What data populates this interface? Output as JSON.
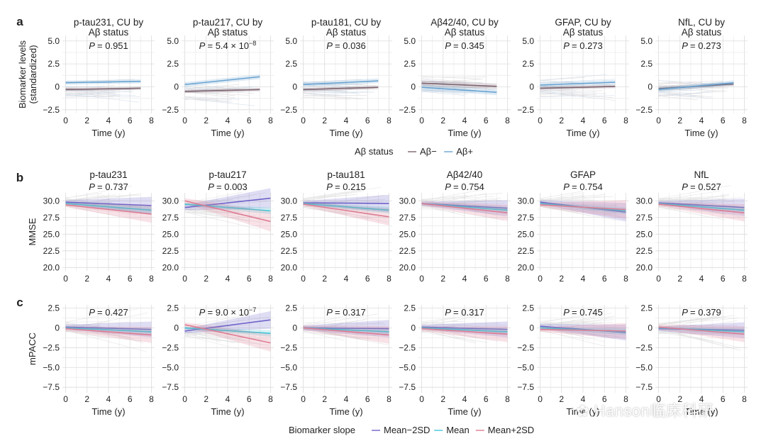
{
  "row_letters": [
    "a",
    "b",
    "c"
  ],
  "legend_a": {
    "title": "Aβ status",
    "items": [
      {
        "label": "Aβ−",
        "color": "#7d6470"
      },
      {
        "label": "Aβ+",
        "color": "#6aa3d1"
      }
    ]
  },
  "legend_bc": {
    "title": "Biomarker slope",
    "items": [
      {
        "label": "Mean−2SD",
        "color": "#6e63c9"
      },
      {
        "label": "Mean",
        "color": "#3fc6d8"
      },
      {
        "label": "Mean+2SD",
        "color": "#de7c93"
      }
    ]
  },
  "watermark": "Hanson临床科研",
  "chart_data": [
    {
      "row": "a",
      "type": "line",
      "ylabel": "Biomarker levels\n(standardized)",
      "xlabel": "Time (y)",
      "xlim": [
        -0.3,
        8.3
      ],
      "ylim": [
        -2.9,
        5.6
      ],
      "xticks": [
        0,
        2,
        4,
        6,
        8
      ],
      "yticks": [
        -2.5,
        0,
        2.5,
        5.0
      ],
      "ytick_labels": [
        "−2.5",
        "0",
        "2.5",
        "5.0"
      ],
      "grid": true,
      "panels": [
        {
          "title": "p-tau231, CU by\nAβ status",
          "p": "P = 0.951",
          "series": [
            {
              "name": "Aβ−",
              "x": [
                0,
                7
              ],
              "y": [
                -0.3,
                -0.15
              ],
              "band": 0.18,
              "color": "#7d6470"
            },
            {
              "name": "Aβ+",
              "x": [
                0,
                7
              ],
              "y": [
                0.45,
                0.6
              ],
              "band": 0.22,
              "color": "#6aa3d1"
            }
          ]
        },
        {
          "title": "p-tau217, CU by\nAβ status",
          "p": "P = 5.4 × 10−8",
          "series": [
            {
              "name": "Aβ−",
              "x": [
                0,
                7
              ],
              "y": [
                -0.5,
                -0.3
              ],
              "band": 0.18,
              "color": "#7d6470"
            },
            {
              "name": "Aβ+",
              "x": [
                0,
                7
              ],
              "y": [
                0.25,
                1.1
              ],
              "band": 0.25,
              "color": "#6aa3d1"
            }
          ]
        },
        {
          "title": "p-tau181, CU by\nAβ status",
          "p": "P = 0.036",
          "series": [
            {
              "name": "Aβ−",
              "x": [
                0,
                7
              ],
              "y": [
                -0.3,
                -0.05
              ],
              "band": 0.2,
              "color": "#7d6470"
            },
            {
              "name": "Aβ+",
              "x": [
                0,
                7
              ],
              "y": [
                0.25,
                0.65
              ],
              "band": 0.25,
              "color": "#6aa3d1"
            }
          ]
        },
        {
          "title": "Aβ42/40, CU by\nAβ status",
          "p": "P = 0.345",
          "series": [
            {
              "name": "Aβ−",
              "x": [
                0,
                7
              ],
              "y": [
                0.4,
                0.05
              ],
              "band": 0.3,
              "color": "#7d6470"
            },
            {
              "name": "Aβ+",
              "x": [
                0,
                7
              ],
              "y": [
                -0.05,
                -0.6
              ],
              "band": 0.3,
              "color": "#6aa3d1"
            }
          ]
        },
        {
          "title": "GFAP, CU by\nAβ status",
          "p": "P = 0.273",
          "series": [
            {
              "name": "Aβ−",
              "x": [
                0,
                7
              ],
              "y": [
                -0.15,
                0.05
              ],
              "band": 0.2,
              "color": "#7d6470"
            },
            {
              "name": "Aβ+",
              "x": [
                0,
                7
              ],
              "y": [
                0.2,
                0.5
              ],
              "band": 0.25,
              "color": "#6aa3d1"
            }
          ]
        },
        {
          "title": "NfL, CU by\nAβ status",
          "p": "P = 0.273",
          "series": [
            {
              "name": "Aβ−",
              "x": [
                0,
                7
              ],
              "y": [
                -0.2,
                0.3
              ],
              "band": 0.2,
              "color": "#7d6470"
            },
            {
              "name": "Aβ+",
              "x": [
                0,
                7
              ],
              "y": [
                -0.3,
                0.45
              ],
              "band": 0.25,
              "color": "#6aa3d1"
            }
          ]
        }
      ]
    },
    {
      "row": "b",
      "type": "line",
      "ylabel": "MMSE",
      "xlabel": "",
      "xlim": [
        -0.3,
        8.3
      ],
      "ylim": [
        19.5,
        31.2
      ],
      "xticks": [
        0,
        2,
        4,
        6,
        8
      ],
      "yticks": [
        20.0,
        22.5,
        25.0,
        27.5,
        30.0
      ],
      "ytick_labels": [
        "20.0",
        "22.5",
        "25.0",
        "27.5",
        "30.0"
      ],
      "grid": true,
      "panels": [
        {
          "title": "p-tau231",
          "p": "P = 0.737",
          "series": [
            {
              "name": "Mean−2SD",
              "x": [
                0,
                8
              ],
              "y": [
                29.8,
                29.3
              ],
              "band": [
                0.3,
                1.3
              ],
              "color": "#6e63c9"
            },
            {
              "name": "Mean",
              "x": [
                0,
                8
              ],
              "y": [
                29.6,
                28.6
              ],
              "band": [
                0.15,
                0.6
              ],
              "color": "#3fc6d8"
            },
            {
              "name": "Mean+2SD",
              "x": [
                0,
                8
              ],
              "y": [
                29.4,
                28.0
              ],
              "band": [
                0.3,
                1.3
              ],
              "color": "#de7c93"
            }
          ]
        },
        {
          "title": "p-tau217",
          "p": "P = 0.003",
          "series": [
            {
              "name": "Mean−2SD",
              "x": [
                0,
                8
              ],
              "y": [
                29.0,
                30.4
              ],
              "band": [
                0.4,
                1.5
              ],
              "color": "#6e63c9"
            },
            {
              "name": "Mean",
              "x": [
                0,
                8
              ],
              "y": [
                29.5,
                28.5
              ],
              "band": [
                0.15,
                0.5
              ],
              "color": "#3fc6d8"
            },
            {
              "name": "Mean+2SD",
              "x": [
                0,
                8
              ],
              "y": [
                30.0,
                26.9
              ],
              "band": [
                0.4,
                1.5
              ],
              "color": "#de7c93"
            }
          ]
        },
        {
          "title": "p-tau181",
          "p": "P = 0.215",
          "series": [
            {
              "name": "Mean−2SD",
              "x": [
                0,
                8
              ],
              "y": [
                29.7,
                29.6
              ],
              "band": [
                0.3,
                1.3
              ],
              "color": "#6e63c9"
            },
            {
              "name": "Mean",
              "x": [
                0,
                8
              ],
              "y": [
                29.6,
                28.6
              ],
              "band": [
                0.15,
                0.5
              ],
              "color": "#3fc6d8"
            },
            {
              "name": "Mean+2SD",
              "x": [
                0,
                8
              ],
              "y": [
                29.5,
                27.6
              ],
              "band": [
                0.3,
                1.3
              ],
              "color": "#de7c93"
            }
          ]
        },
        {
          "title": "Aβ42/40",
          "p": "P = 0.754",
          "series": [
            {
              "name": "Mean−2SD",
              "x": [
                0,
                8
              ],
              "y": [
                29.6,
                28.9
              ],
              "band": [
                0.3,
                1.2
              ],
              "color": "#6e63c9"
            },
            {
              "name": "Mean",
              "x": [
                0,
                8
              ],
              "y": [
                29.6,
                28.6
              ],
              "band": [
                0.15,
                0.5
              ],
              "color": "#3fc6d8"
            },
            {
              "name": "Mean+2SD",
              "x": [
                0,
                8
              ],
              "y": [
                29.6,
                28.2
              ],
              "band": [
                0.3,
                1.2
              ],
              "color": "#de7c93"
            }
          ]
        },
        {
          "title": "GFAP",
          "p": "P = 0.754",
          "series": [
            {
              "name": "Mean−2SD",
              "x": [
                0,
                8
              ],
              "y": [
                29.8,
                28.3
              ],
              "band": [
                0.3,
                1.4
              ],
              "color": "#6e63c9"
            },
            {
              "name": "Mean",
              "x": [
                0,
                8
              ],
              "y": [
                29.6,
                28.5
              ],
              "band": [
                0.15,
                0.5
              ],
              "color": "#3fc6d8"
            },
            {
              "name": "Mean+2SD",
              "x": [
                0,
                8
              ],
              "y": [
                29.4,
                28.7
              ],
              "band": [
                0.3,
                1.4
              ],
              "color": "#de7c93"
            }
          ]
        },
        {
          "title": "NfL",
          "p": "P = 0.527",
          "series": [
            {
              "name": "Mean−2SD",
              "x": [
                0,
                8
              ],
              "y": [
                29.7,
                29.0
              ],
              "band": [
                0.3,
                1.3
              ],
              "color": "#6e63c9"
            },
            {
              "name": "Mean",
              "x": [
                0,
                8
              ],
              "y": [
                29.6,
                28.6
              ],
              "band": [
                0.15,
                0.5
              ],
              "color": "#3fc6d8"
            },
            {
              "name": "Mean+2SD",
              "x": [
                0,
                8
              ],
              "y": [
                29.5,
                28.2
              ],
              "band": [
                0.3,
                1.3
              ],
              "color": "#de7c93"
            }
          ]
        }
      ]
    },
    {
      "row": "c",
      "type": "line",
      "ylabel": "mPACC",
      "xlabel": "Time (y)",
      "xlim": [
        -0.3,
        8.3
      ],
      "ylim": [
        -8.2,
        2.9
      ],
      "xticks": [
        0,
        2,
        4,
        6,
        8
      ],
      "yticks": [
        -7.5,
        -5.0,
        -2.5,
        0,
        2.5
      ],
      "ytick_labels": [
        "−7.5",
        "−5.0",
        "−2.5",
        "0",
        "2.5"
      ],
      "grid": true,
      "panels": [
        {
          "title": "",
          "p": "P = 0.427",
          "series": [
            {
              "name": "Mean−2SD",
              "x": [
                0,
                8
              ],
              "y": [
                0.1,
                -0.2
              ],
              "band": [
                0.3,
                1.0
              ],
              "color": "#6e63c9"
            },
            {
              "name": "Mean",
              "x": [
                0,
                8
              ],
              "y": [
                0.0,
                -0.5
              ],
              "band": [
                0.15,
                0.4
              ],
              "color": "#3fc6d8"
            },
            {
              "name": "Mean+2SD",
              "x": [
                0,
                8
              ],
              "y": [
                -0.1,
                -0.9
              ],
              "band": [
                0.3,
                1.0
              ],
              "color": "#de7c93"
            }
          ]
        },
        {
          "title": "",
          "p": "P = 9.0 × 10−7",
          "series": [
            {
              "name": "Mean−2SD",
              "x": [
                0,
                8
              ],
              "y": [
                -0.4,
                1.0
              ],
              "band": [
                0.3,
                1.1
              ],
              "color": "#6e63c9"
            },
            {
              "name": "Mean",
              "x": [
                0,
                8
              ],
              "y": [
                0.0,
                -0.7
              ],
              "band": [
                0.15,
                0.4
              ],
              "color": "#3fc6d8"
            },
            {
              "name": "Mean+2SD",
              "x": [
                0,
                8
              ],
              "y": [
                0.4,
                -1.9
              ],
              "band": [
                0.3,
                1.1
              ],
              "color": "#de7c93"
            }
          ]
        },
        {
          "title": "",
          "p": "P = 0.317",
          "series": [
            {
              "name": "Mean−2SD",
              "x": [
                0,
                8
              ],
              "y": [
                0.0,
                -0.1
              ],
              "band": [
                0.3,
                1.1
              ],
              "color": "#6e63c9"
            },
            {
              "name": "Mean",
              "x": [
                0,
                8
              ],
              "y": [
                0.0,
                -0.5
              ],
              "band": [
                0.15,
                0.4
              ],
              "color": "#3fc6d8"
            },
            {
              "name": "Mean+2SD",
              "x": [
                0,
                8
              ],
              "y": [
                0.0,
                -0.9
              ],
              "band": [
                0.3,
                1.1
              ],
              "color": "#de7c93"
            }
          ]
        },
        {
          "title": "",
          "p": "P = 0.317",
          "series": [
            {
              "name": "Mean−2SD",
              "x": [
                0,
                8
              ],
              "y": [
                0.1,
                -0.2
              ],
              "band": [
                0.3,
                1.0
              ],
              "color": "#6e63c9"
            },
            {
              "name": "Mean",
              "x": [
                0,
                8
              ],
              "y": [
                0.0,
                -0.5
              ],
              "band": [
                0.15,
                0.4
              ],
              "color": "#3fc6d8"
            },
            {
              "name": "Mean+2SD",
              "x": [
                0,
                8
              ],
              "y": [
                -0.1,
                -0.8
              ],
              "band": [
                0.3,
                1.0
              ],
              "color": "#de7c93"
            }
          ]
        },
        {
          "title": "",
          "p": "P = 0.745",
          "series": [
            {
              "name": "Mean−2SD",
              "x": [
                0,
                8
              ],
              "y": [
                0.2,
                -0.6
              ],
              "band": [
                0.3,
                1.0
              ],
              "color": "#6e63c9"
            },
            {
              "name": "Mean",
              "x": [
                0,
                8
              ],
              "y": [
                0.0,
                -0.5
              ],
              "band": [
                0.15,
                0.4
              ],
              "color": "#3fc6d8"
            },
            {
              "name": "Mean+2SD",
              "x": [
                0,
                8
              ],
              "y": [
                -0.2,
                -0.4
              ],
              "band": [
                0.3,
                1.0
              ],
              "color": "#de7c93"
            }
          ]
        },
        {
          "title": "",
          "p": "P = 0.379",
          "series": [
            {
              "name": "Mean−2SD",
              "x": [
                0,
                8
              ],
              "y": [
                -0.1,
                -0.3
              ],
              "band": [
                0.3,
                1.0
              ],
              "color": "#6e63c9"
            },
            {
              "name": "Mean",
              "x": [
                0,
                8
              ],
              "y": [
                0.0,
                -0.5
              ],
              "band": [
                0.15,
                0.4
              ],
              "color": "#3fc6d8"
            },
            {
              "name": "Mean+2SD",
              "x": [
                0,
                8
              ],
              "y": [
                0.1,
                -0.8
              ],
              "band": [
                0.3,
                1.0
              ],
              "color": "#de7c93"
            }
          ]
        }
      ]
    }
  ]
}
